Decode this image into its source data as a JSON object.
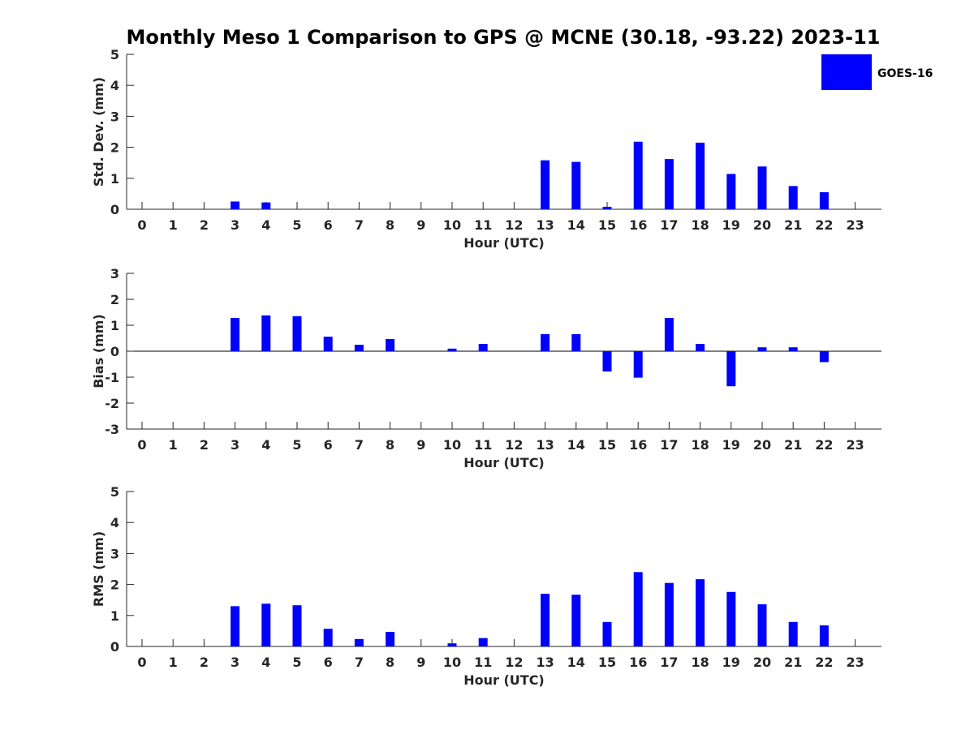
{
  "title": "Monthly Meso 1 Comparison to GPS @ MCNE (30.18, -93.22) 2023-11",
  "legend": {
    "label": "GOES-16",
    "color": "#0000ff",
    "placement": "top-right"
  },
  "chart_data": [
    {
      "type": "bar",
      "series_name": "GOES-16",
      "xlabel": "Hour (UTC)",
      "ylabel": "Std. Dev. (mm)",
      "ylim": [
        0,
        5
      ],
      "yticks": [
        0,
        1,
        2,
        3,
        4,
        5
      ],
      "categories": [
        "0",
        "1",
        "2",
        "3",
        "4",
        "5",
        "6",
        "7",
        "8",
        "9",
        "10",
        "11",
        "12",
        "13",
        "14",
        "15",
        "16",
        "17",
        "18",
        "19",
        "20",
        "21",
        "22",
        "23"
      ],
      "values": [
        null,
        null,
        null,
        0.25,
        0.22,
        null,
        null,
        null,
        null,
        null,
        null,
        null,
        null,
        1.58,
        1.53,
        0.08,
        2.18,
        1.62,
        2.15,
        1.14,
        1.38,
        0.75,
        0.55,
        null
      ]
    },
    {
      "type": "bar",
      "series_name": "GOES-16",
      "xlabel": "Hour (UTC)",
      "ylabel": "Bias (mm)",
      "ylim": [
        -3,
        3
      ],
      "yticks": [
        -3,
        -2,
        -1,
        0,
        1,
        2,
        3
      ],
      "categories": [
        "0",
        "1",
        "2",
        "3",
        "4",
        "5",
        "6",
        "7",
        "8",
        "9",
        "10",
        "11",
        "12",
        "13",
        "14",
        "15",
        "16",
        "17",
        "18",
        "19",
        "20",
        "21",
        "22",
        "23"
      ],
      "values": [
        null,
        null,
        null,
        1.28,
        1.38,
        1.35,
        0.56,
        0.25,
        0.47,
        null,
        0.1,
        0.28,
        null,
        0.66,
        0.66,
        -0.78,
        -1.02,
        1.28,
        0.28,
        -1.35,
        0.15,
        0.15,
        -0.42,
        null
      ]
    },
    {
      "type": "bar",
      "series_name": "GOES-16",
      "xlabel": "Hour (UTC)",
      "ylabel": "RMS (mm)",
      "ylim": [
        0,
        5
      ],
      "yticks": [
        0,
        1,
        2,
        3,
        4,
        5
      ],
      "categories": [
        "0",
        "1",
        "2",
        "3",
        "4",
        "5",
        "6",
        "7",
        "8",
        "9",
        "10",
        "11",
        "12",
        "13",
        "14",
        "15",
        "16",
        "17",
        "18",
        "19",
        "20",
        "21",
        "22",
        "23"
      ],
      "values": [
        null,
        null,
        null,
        1.3,
        1.38,
        1.33,
        0.57,
        0.24,
        0.47,
        null,
        0.1,
        0.27,
        null,
        1.7,
        1.67,
        0.79,
        2.4,
        2.05,
        2.17,
        1.76,
        1.36,
        0.79,
        0.68,
        null
      ]
    }
  ]
}
